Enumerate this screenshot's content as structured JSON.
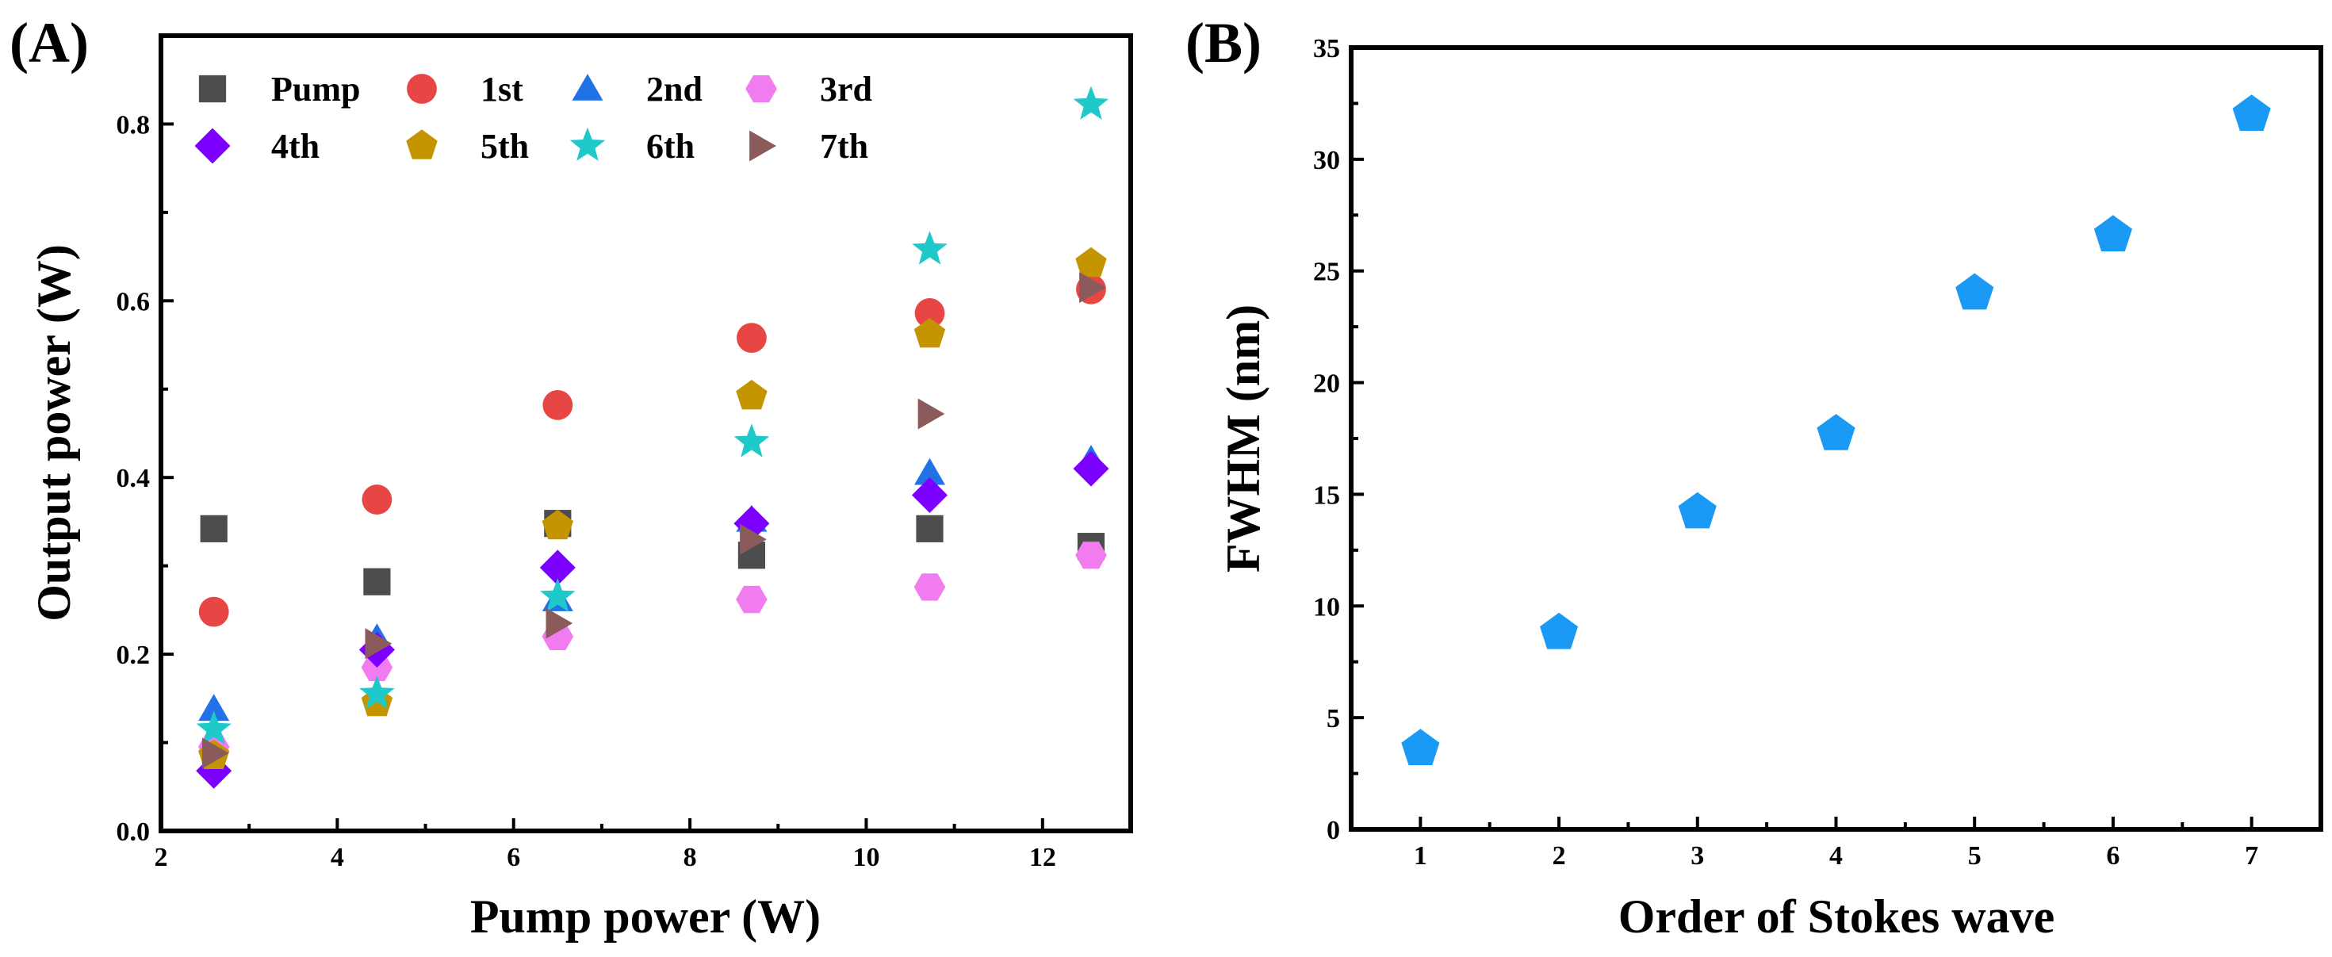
{
  "chart_data": [
    {
      "panel": "(A)",
      "type": "scatter",
      "xlabel": "Pump power (W)",
      "ylabel": "Output power (W)",
      "xlim": [
        2,
        13
      ],
      "ylim": [
        0,
        0.9
      ],
      "xticks": [
        2,
        4,
        6,
        8,
        10,
        12
      ],
      "yticks": [
        0.0,
        0.2,
        0.4,
        0.6,
        0.8
      ],
      "x": [
        2.6,
        4.45,
        6.5,
        8.7,
        10.72,
        12.55
      ],
      "legend_position": "top-left",
      "series": [
        {
          "name": "Pump",
          "marker": "square",
          "color": "#4d4d4d",
          "values": [
            0.342,
            0.282,
            0.348,
            0.312,
            0.342,
            0.322
          ]
        },
        {
          "name": "1st",
          "marker": "circle",
          "color": "#e84545",
          "values": [
            0.248,
            0.375,
            0.482,
            0.558,
            0.586,
            0.613
          ]
        },
        {
          "name": "2nd",
          "marker": "triangle",
          "color": "#2172e6",
          "values": [
            0.138,
            0.218,
            0.262,
            0.352,
            0.405,
            0.42
          ]
        },
        {
          "name": "3rd",
          "marker": "hexagon",
          "color": "#f07cf0",
          "values": [
            0.095,
            0.185,
            0.22,
            0.262,
            0.276,
            0.312
          ]
        },
        {
          "name": "4th",
          "marker": "diamond",
          "color": "#7c00ff",
          "values": [
            0.068,
            0.205,
            0.298,
            0.348,
            0.38,
            0.41
          ]
        },
        {
          "name": "5th",
          "marker": "pentagon",
          "color": "#c49500",
          "values": [
            0.085,
            0.145,
            0.345,
            0.492,
            0.562,
            0.642
          ]
        },
        {
          "name": "6th",
          "marker": "star",
          "color": "#1fc9c9",
          "values": [
            0.115,
            0.155,
            0.265,
            0.44,
            0.658,
            0.822
          ]
        },
        {
          "name": "7th",
          "marker": "triangle-right",
          "color": "#8b5a5a",
          "values": [
            0.088,
            0.212,
            0.235,
            0.33,
            0.472,
            0.615
          ]
        }
      ]
    },
    {
      "panel": "(B)",
      "type": "scatter",
      "xlabel": "Order of Stokes wave",
      "ylabel": "FWHM (nm)",
      "xlim": [
        0.5,
        7.5
      ],
      "ylim": [
        0,
        35
      ],
      "xticks": [
        1,
        2,
        3,
        4,
        5,
        6,
        7
      ],
      "yticks": [
        0,
        5,
        10,
        15,
        20,
        25,
        30,
        35
      ],
      "series": [
        {
          "name": "FWHM",
          "marker": "pentagon",
          "color": "#1a9af5",
          "x": [
            1,
            2,
            3,
            4,
            5,
            6,
            7
          ],
          "values": [
            3.6,
            8.8,
            14.2,
            17.7,
            24.0,
            26.6,
            32.0
          ]
        }
      ]
    }
  ]
}
